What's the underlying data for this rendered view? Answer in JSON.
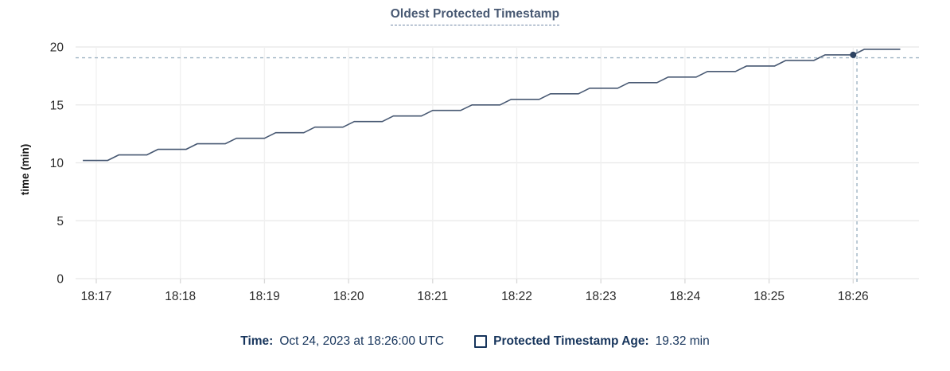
{
  "chart": {
    "title": "Oldest Protected Timestamp",
    "ylabel": "time (min)"
  },
  "legend": {
    "time_label": "Time:",
    "time_value": "Oct 24, 2023 at 18:26:00 UTC",
    "series_label": "Protected Timestamp Age:",
    "series_value": "19.32 min"
  },
  "colors": {
    "line": "#475872",
    "dot": "#2c4362",
    "crosshair": "#9fb3c3",
    "grid_h": "#e8e8e8",
    "grid_v": "#f0f0f0",
    "tick": "#d8d8d8",
    "axis_text": "#2b2b2b",
    "title_text": "#475872",
    "legend_text": "#17355c"
  },
  "chart_data": {
    "type": "line",
    "title": "Oldest Protected Timestamp",
    "xlabel": "",
    "ylabel": "time (min)",
    "ylim": [
      0,
      20
    ],
    "y_ticks": [
      0,
      5,
      10,
      15,
      20
    ],
    "x_domain_offsets_min": [
      -0.25,
      9.78
    ],
    "x_ticks": [
      {
        "offset": 0,
        "label": "18:17"
      },
      {
        "offset": 1,
        "label": "18:18"
      },
      {
        "offset": 2,
        "label": "18:19"
      },
      {
        "offset": 3,
        "label": "18:20"
      },
      {
        "offset": 4,
        "label": "18:21"
      },
      {
        "offset": 5,
        "label": "18:22"
      },
      {
        "offset": 6,
        "label": "18:23"
      },
      {
        "offset": 7,
        "label": "18:24"
      },
      {
        "offset": 8,
        "label": "18:25"
      },
      {
        "offset": 9,
        "label": "18:26"
      }
    ],
    "grid": true,
    "legend_position": "bottom",
    "series": [
      {
        "name": "Protected Timestamp Age",
        "unit": "min",
        "points": [
          [
            -0.16,
            10.2
          ],
          [
            0.133,
            10.2
          ],
          [
            0.267,
            10.68
          ],
          [
            0.6,
            10.68
          ],
          [
            0.733,
            11.16
          ],
          [
            1.067,
            11.16
          ],
          [
            1.2,
            11.64
          ],
          [
            1.533,
            11.64
          ],
          [
            1.667,
            12.12
          ],
          [
            2.0,
            12.12
          ],
          [
            2.133,
            12.6
          ],
          [
            2.467,
            12.6
          ],
          [
            2.6,
            13.08
          ],
          [
            2.933,
            13.08
          ],
          [
            3.067,
            13.56
          ],
          [
            3.4,
            13.56
          ],
          [
            3.533,
            14.04
          ],
          [
            3.867,
            14.04
          ],
          [
            4.0,
            14.52
          ],
          [
            4.333,
            14.52
          ],
          [
            4.467,
            15.0
          ],
          [
            4.8,
            15.0
          ],
          [
            4.933,
            15.48
          ],
          [
            5.267,
            15.48
          ],
          [
            5.4,
            15.96
          ],
          [
            5.733,
            15.96
          ],
          [
            5.867,
            16.44
          ],
          [
            6.2,
            16.44
          ],
          [
            6.333,
            16.92
          ],
          [
            6.667,
            16.92
          ],
          [
            6.8,
            17.4
          ],
          [
            7.133,
            17.4
          ],
          [
            7.267,
            17.88
          ],
          [
            7.6,
            17.88
          ],
          [
            7.733,
            18.36
          ],
          [
            8.067,
            18.36
          ],
          [
            8.2,
            18.84
          ],
          [
            8.533,
            18.84
          ],
          [
            8.667,
            19.32
          ],
          [
            9.0,
            19.32
          ],
          [
            9.133,
            19.8
          ],
          [
            9.56,
            19.8
          ]
        ]
      }
    ],
    "hover": {
      "time_label": "Oct 24, 2023 at 18:26:00 UTC",
      "t_offset": 9.0,
      "value": 19.32,
      "value_label": "19.32 min",
      "crosshair_t_offset": 9.045,
      "crosshair_value": 19.07
    }
  }
}
